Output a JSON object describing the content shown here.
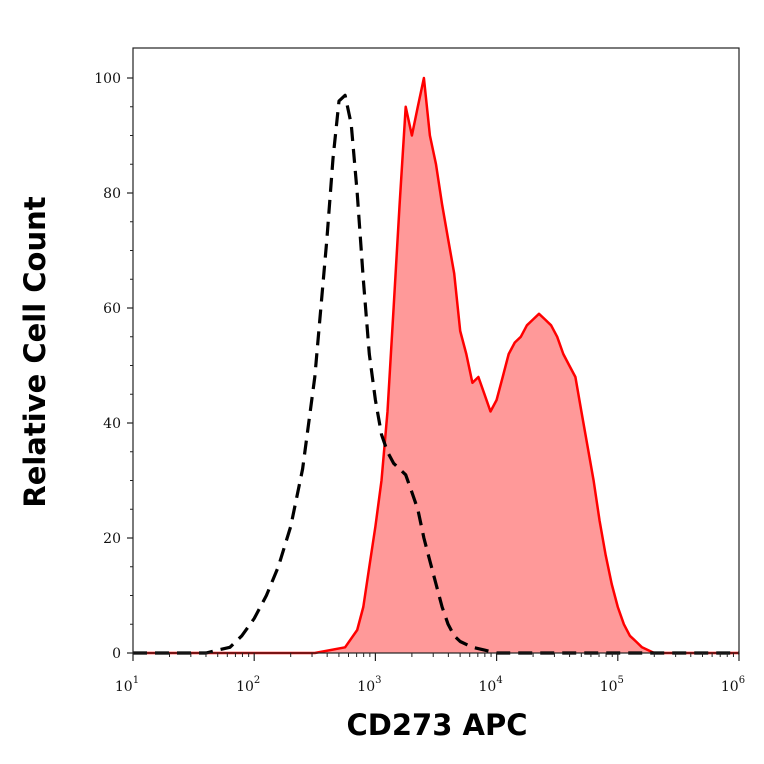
{
  "chart_data": {
    "type": "area",
    "xlabel": "CD273 APC",
    "ylabel": "Relative Cell Count",
    "x_scale": "log",
    "xlim": [
      10,
      1000000
    ],
    "ylim": [
      0,
      100
    ],
    "x_ticks": [
      {
        "base": "10",
        "exp": "1",
        "value": 10
      },
      {
        "base": "10",
        "exp": "2",
        "value": 100
      },
      {
        "base": "10",
        "exp": "3",
        "value": 1000
      },
      {
        "base": "10",
        "exp": "4",
        "value": 10000
      },
      {
        "base": "10",
        "exp": "5",
        "value": 100000
      },
      {
        "base": "10",
        "exp": "6",
        "value": 1000000
      }
    ],
    "y_ticks": [
      "0",
      "20",
      "40",
      "60",
      "80",
      "100"
    ],
    "series": [
      {
        "style": "filled",
        "color": "#ff0000",
        "fill": "#ff9999",
        "points": [
          [
            10,
            0
          ],
          [
            316,
            0
          ],
          [
            562,
            1
          ],
          [
            708,
            4
          ],
          [
            794,
            8
          ],
          [
            891,
            15
          ],
          [
            1000,
            22
          ],
          [
            1122,
            30
          ],
          [
            1259,
            42
          ],
          [
            1413,
            60
          ],
          [
            1585,
            78
          ],
          [
            1778,
            95
          ],
          [
            2000,
            90
          ],
          [
            2239,
            95
          ],
          [
            2512,
            100
          ],
          [
            2818,
            90
          ],
          [
            3162,
            85
          ],
          [
            3548,
            78
          ],
          [
            3981,
            72
          ],
          [
            4467,
            66
          ],
          [
            5012,
            56
          ],
          [
            5623,
            52
          ],
          [
            6310,
            47
          ],
          [
            7079,
            48
          ],
          [
            7943,
            45
          ],
          [
            8913,
            42
          ],
          [
            10000,
            44
          ],
          [
            11220,
            48
          ],
          [
            12589,
            52
          ],
          [
            14125,
            54
          ],
          [
            15849,
            55
          ],
          [
            17783,
            57
          ],
          [
            19953,
            58
          ],
          [
            22387,
            59
          ],
          [
            25119,
            58
          ],
          [
            28184,
            57
          ],
          [
            31623,
            55
          ],
          [
            35481,
            52
          ],
          [
            39811,
            50
          ],
          [
            44668,
            48
          ],
          [
            50119,
            42
          ],
          [
            56234,
            36
          ],
          [
            63096,
            30
          ],
          [
            70795,
            23
          ],
          [
            79433,
            17
          ],
          [
            89125,
            12
          ],
          [
            100000,
            8
          ],
          [
            112202,
            5
          ],
          [
            125893,
            3
          ],
          [
            141254,
            2
          ],
          [
            158489,
            1
          ],
          [
            199526,
            0
          ],
          [
            1000000,
            0
          ]
        ]
      },
      {
        "style": "dashed",
        "color": "#000000",
        "points": [
          [
            10,
            0
          ],
          [
            40,
            0
          ],
          [
            50,
            0.5
          ],
          [
            63,
            1
          ],
          [
            79,
            3
          ],
          [
            100,
            6
          ],
          [
            126,
            10
          ],
          [
            158,
            15
          ],
          [
            200,
            22
          ],
          [
            251,
            32
          ],
          [
            316,
            48
          ],
          [
            398,
            72
          ],
          [
            447,
            86
          ],
          [
            501,
            96
          ],
          [
            562,
            97
          ],
          [
            631,
            92
          ],
          [
            708,
            80
          ],
          [
            794,
            65
          ],
          [
            891,
            52
          ],
          [
            1000,
            44
          ],
          [
            1122,
            38
          ],
          [
            1259,
            35
          ],
          [
            1413,
            33
          ],
          [
            1585,
            32
          ],
          [
            1778,
            31
          ],
          [
            1995,
            28
          ],
          [
            2239,
            25
          ],
          [
            2512,
            20
          ],
          [
            2818,
            16
          ],
          [
            3162,
            12
          ],
          [
            3548,
            8
          ],
          [
            3981,
            5
          ],
          [
            4467,
            3
          ],
          [
            5012,
            2
          ],
          [
            6310,
            1
          ],
          [
            7943,
            0.5
          ],
          [
            10000,
            0
          ],
          [
            1000000,
            0
          ]
        ]
      }
    ]
  }
}
